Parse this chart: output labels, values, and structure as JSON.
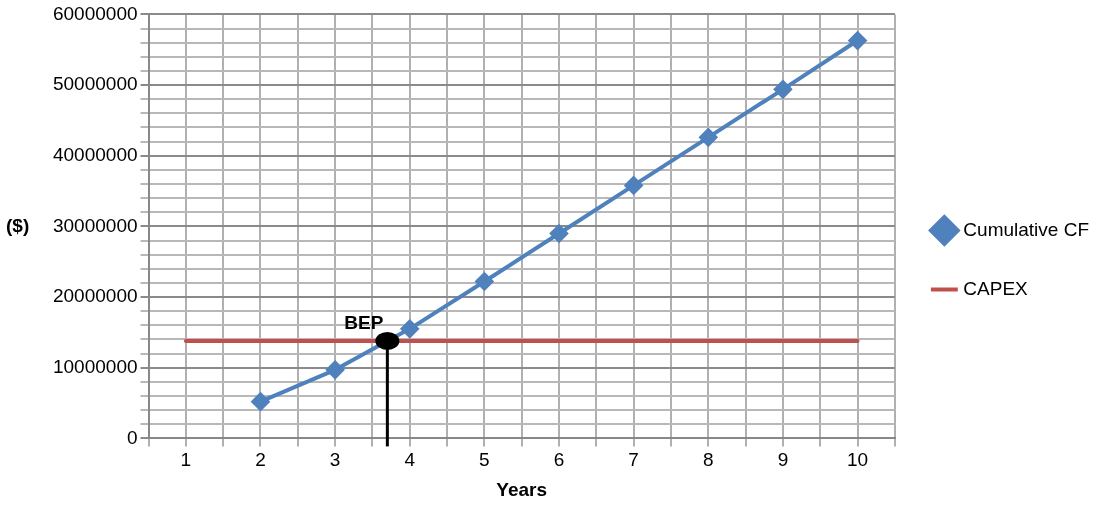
{
  "chart_data": {
    "type": "line",
    "xlabel": "Years",
    "ylabel": "($)",
    "x": [
      1,
      2,
      3,
      4,
      5,
      6,
      7,
      8,
      9,
      10
    ],
    "xlim": [
      0.5,
      10.5
    ],
    "xticks": [
      {
        "value": 0.5,
        "label": null
      },
      1,
      {
        "value": 1.5,
        "label": null
      },
      2,
      {
        "value": 2.5,
        "label": null
      },
      3,
      {
        "value": 3.5,
        "label": null
      },
      4,
      {
        "value": 4.5,
        "label": null
      },
      5,
      {
        "value": 5.5,
        "label": null
      },
      6,
      {
        "value": 6.5,
        "label": null
      },
      7,
      {
        "value": 7.5,
        "label": null
      },
      8,
      {
        "value": 8.5,
        "label": null
      },
      9,
      {
        "value": 9.5,
        "label": null
      },
      10,
      {
        "value": 10.5,
        "label": null
      }
    ],
    "ylim": [
      0,
      60000000
    ],
    "yticks": [
      0,
      {
        "value": 2000000,
        "label": null
      },
      {
        "value": 4000000,
        "label": null
      },
      {
        "value": 6000000,
        "label": null
      },
      {
        "value": 8000000,
        "label": null
      },
      10000000,
      {
        "value": 12000000,
        "label": null
      },
      {
        "value": 14000000,
        "label": null
      },
      {
        "value": 16000000,
        "label": null
      },
      {
        "value": 18000000,
        "label": null
      },
      20000000,
      {
        "value": 22000000,
        "label": null
      },
      {
        "value": 24000000,
        "label": null
      },
      {
        "value": 26000000,
        "label": null
      },
      {
        "value": 28000000,
        "label": null
      },
      30000000,
      {
        "value": 32000000,
        "label": null
      },
      {
        "value": 34000000,
        "label": null
      },
      {
        "value": 36000000,
        "label": null
      },
      {
        "value": 38000000,
        "label": null
      },
      40000000,
      {
        "value": 42000000,
        "label": null
      },
      {
        "value": 44000000,
        "label": null
      },
      {
        "value": 46000000,
        "label": null
      },
      {
        "value": 48000000,
        "label": null
      },
      50000000,
      {
        "value": 52000000,
        "label": null
      },
      {
        "value": 54000000,
        "label": null
      },
      {
        "value": 56000000,
        "label": null
      },
      {
        "value": 58000000,
        "label": null
      },
      60000000
    ],
    "grid": true,
    "legend": "right",
    "line_style": "solid",
    "series": [
      {
        "name": "Cumulative CF",
        "color": "#4f81bd",
        "marker": "diamond",
        "values": [
          null,
          5200000,
          9700000,
          15500000,
          22200000,
          29000000,
          35800000,
          42600000,
          49400000,
          56300000
        ]
      },
      {
        "name": "CAPEX",
        "color": "#c0504d",
        "marker": "none",
        "values": [
          13800000,
          13800000,
          13800000,
          13800000,
          13800000,
          13800000,
          13800000,
          13800000,
          13800000,
          13800000
        ]
      }
    ],
    "annotations": [
      {
        "text": "BEP",
        "x": 3.7,
        "y": 13800000
      }
    ]
  }
}
